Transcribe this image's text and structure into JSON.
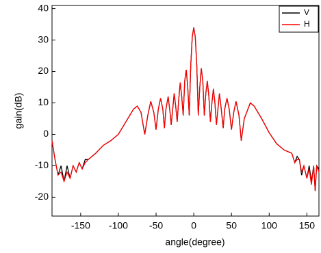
{
  "chart_data": {
    "type": "line",
    "xlabel": "angle(degree)",
    "ylabel": "gain(dB)",
    "x": [
      -188,
      -184,
      -180,
      -176,
      -172,
      -168,
      -164,
      -160,
      -156,
      -152,
      -148,
      -144,
      -140,
      -130,
      -120,
      -110,
      -100,
      -90,
      -80,
      -75,
      -70,
      -65,
      -61,
      -57,
      -53,
      -50,
      -47,
      -44,
      -41,
      -39,
      -37,
      -34,
      -31,
      -30,
      -28,
      -26,
      -24,
      -22,
      -20,
      -18,
      -16,
      -14,
      -12,
      -10,
      -8,
      -6,
      -4,
      -2,
      0,
      2,
      4,
      6,
      8,
      10,
      12,
      14,
      16,
      18,
      20,
      22,
      24,
      26,
      28,
      30,
      32,
      34,
      36,
      39,
      41,
      44,
      47,
      50,
      53,
      56,
      60,
      63,
      67,
      75,
      80,
      90,
      100,
      110,
      120,
      130,
      134,
      137,
      140,
      143,
      146,
      150,
      153,
      156,
      159,
      161,
      163,
      166
    ],
    "series": [
      {
        "name": "V",
        "color": "#000000",
        "values": [
          -2,
          -8,
          -13,
          -10,
          -15,
          -10,
          -14,
          -10,
          -12,
          -9,
          -11,
          -8,
          -8,
          -6,
          -3.5,
          -2,
          0,
          4,
          8,
          9,
          7,
          0,
          6,
          10.5,
          7,
          1.5,
          8,
          11.5,
          8,
          2,
          8,
          12,
          6,
          3,
          8,
          13,
          9,
          4,
          11,
          16.5,
          12,
          6,
          17,
          20.5,
          15,
          6,
          22,
          31,
          34,
          31,
          22,
          6,
          15,
          21,
          17,
          6,
          13,
          17,
          12,
          4,
          10,
          14.5,
          10,
          3,
          8,
          13,
          9,
          2,
          8,
          11.5,
          8,
          1.5,
          7,
          10.5,
          6,
          -2,
          5,
          10,
          9,
          5,
          0.5,
          -3,
          -5,
          -6,
          -9,
          -7,
          -8,
          -13,
          -10,
          -14,
          -10,
          -15,
          -10,
          -18,
          -10,
          -11
        ]
      },
      {
        "name": "H",
        "color": "#ff0000",
        "values": [
          -2,
          -8,
          -13,
          -12,
          -15,
          -12,
          -14,
          -10,
          -12,
          -9,
          -11,
          -9,
          -8,
          -6,
          -3.5,
          -2,
          0,
          4,
          8,
          9,
          7,
          0,
          6,
          10.5,
          7,
          1.5,
          8,
          11.5,
          8,
          2,
          8,
          12,
          6,
          3,
          8,
          13,
          9,
          4,
          11,
          16.5,
          12,
          6,
          17,
          20.5,
          15,
          6,
          22,
          31,
          34,
          31,
          22,
          6,
          15,
          21,
          17,
          6,
          13,
          17,
          12,
          4,
          10,
          14.5,
          10,
          3,
          8,
          13,
          9,
          2,
          8,
          11.5,
          8,
          1.5,
          7,
          10.5,
          6,
          -2,
          5,
          10,
          9,
          5,
          0.5,
          -3,
          -5,
          -6,
          -9,
          -8,
          -8,
          -12,
          -10,
          -14,
          -11,
          -16,
          -10,
          -18,
          -10,
          -12
        ]
      }
    ],
    "xlim": [
      -188,
      166
    ],
    "ylim": [
      -26,
      41
    ],
    "xticks": [
      -150,
      -100,
      -50,
      0,
      50,
      100,
      150
    ],
    "yticks": [
      -20,
      -10,
      0,
      10,
      20,
      30,
      40
    ],
    "legend": "upper right"
  }
}
